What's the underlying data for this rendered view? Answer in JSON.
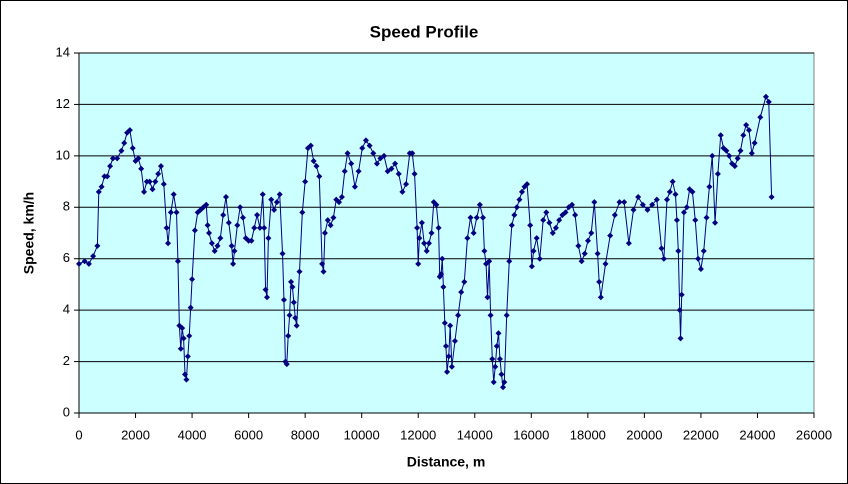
{
  "chart_data": {
    "type": "line",
    "title": "Speed Profile",
    "x_label": "Distance, m",
    "y_label": "Speed, km/h",
    "x": [
      0,
      200,
      350,
      500,
      650,
      700,
      800,
      900,
      1000,
      1100,
      1200,
      1350,
      1500,
      1600,
      1700,
      1800,
      1900,
      2000,
      2100,
      2200,
      2300,
      2400,
      2500,
      2600,
      2700,
      2800,
      2900,
      3000,
      3100,
      3150,
      3250,
      3350,
      3450,
      3500,
      3550,
      3600,
      3650,
      3700,
      3750,
      3800,
      3850,
      3900,
      3950,
      4000,
      4100,
      4200,
      4300,
      4400,
      4500,
      4550,
      4600,
      4700,
      4800,
      4900,
      5000,
      5100,
      5200,
      5300,
      5400,
      5450,
      5500,
      5600,
      5700,
      5800,
      5900,
      6000,
      6100,
      6200,
      6300,
      6400,
      6500,
      6550,
      6600,
      6650,
      6700,
      6800,
      6900,
      7000,
      7100,
      7200,
      7250,
      7300,
      7350,
      7400,
      7450,
      7500,
      7550,
      7600,
      7650,
      7700,
      7800,
      7900,
      8000,
      8100,
      8200,
      8300,
      8400,
      8500,
      8600,
      8650,
      8700,
      8800,
      8900,
      9000,
      9100,
      9200,
      9300,
      9400,
      9500,
      9630,
      9760,
      9890,
      10020,
      10150,
      10280,
      10410,
      10540,
      10660,
      10790,
      10920,
      11050,
      11180,
      11310,
      11440,
      11570,
      11700,
      11790,
      11870,
      11960,
      12000,
      12040,
      12130,
      12210,
      12300,
      12380,
      12470,
      12550,
      12640,
      12720,
      12760,
      12810,
      12850,
      12890,
      12940,
      12980,
      13020,
      13080,
      13130,
      13190,
      13300,
      13410,
      13520,
      13630,
      13740,
      13850,
      13960,
      14070,
      14180,
      14290,
      14340,
      14400,
      14450,
      14510,
      14560,
      14620,
      14670,
      14725,
      14780,
      14840,
      14890,
      14945,
      15000,
      15045,
      15130,
      15220,
      15310,
      15400,
      15490,
      15580,
      15670,
      15760,
      15850,
      15960,
      16020,
      16080,
      16190,
      16300,
      16420,
      16530,
      16640,
      16760,
      16870,
      16985,
      17100,
      17210,
      17325,
      17440,
      17550,
      17665,
      17780,
      17890,
      18005,
      18120,
      18230,
      18345,
      18400,
      18460,
      18625,
      18790,
      18955,
      19120,
      19285,
      19450,
      19615,
      19780,
      19945,
      20110,
      20275,
      20440,
      20605,
      20690,
      20800,
      20900,
      21000,
      21100,
      21150,
      21200,
      21250,
      21280,
      21320,
      21400,
      21500,
      21600,
      21700,
      21800,
      21900,
      22000,
      22100,
      22200,
      22300,
      22400,
      22500,
      22600,
      22700,
      22800,
      22900,
      23000,
      23100,
      23200,
      23300,
      23400,
      23500,
      23600,
      23700,
      23800,
      23900,
      24100,
      24300,
      24400,
      24500
    ],
    "values": [
      5.8,
      5.9,
      5.8,
      6.1,
      6.5,
      8.6,
      8.8,
      9.2,
      9.2,
      9.6,
      9.9,
      9.9,
      10.2,
      10.5,
      10.9,
      11.0,
      10.3,
      9.8,
      9.9,
      9.5,
      8.6,
      9.0,
      9.0,
      8.7,
      9.0,
      9.3,
      9.6,
      8.9,
      7.2,
      6.6,
      7.8,
      8.5,
      7.8,
      5.9,
      3.4,
      2.5,
      3.3,
      2.9,
      1.5,
      1.3,
      2.2,
      3.0,
      4.1,
      5.2,
      7.1,
      7.8,
      7.9,
      8.0,
      8.1,
      7.3,
      7.0,
      6.6,
      6.3,
      6.5,
      6.8,
      7.7,
      8.4,
      7.4,
      6.5,
      5.8,
      6.3,
      7.3,
      8.0,
      7.6,
      6.8,
      6.7,
      6.7,
      7.2,
      7.7,
      7.2,
      8.5,
      7.2,
      4.8,
      4.5,
      6.8,
      8.3,
      7.9,
      8.2,
      8.5,
      6.2,
      4.4,
      2.0,
      1.9,
      3.0,
      3.8,
      5.1,
      4.9,
      4.3,
      3.7,
      3.4,
      5.5,
      7.8,
      9.0,
      10.3,
      10.4,
      9.8,
      9.6,
      9.2,
      5.8,
      5.5,
      7.0,
      7.5,
      7.3,
      7.6,
      8.3,
      8.2,
      8.4,
      9.4,
      10.1,
      9.7,
      8.8,
      9.4,
      10.3,
      10.6,
      10.4,
      10.1,
      9.7,
      9.9,
      10.0,
      9.4,
      9.5,
      9.7,
      9.3,
      8.6,
      8.9,
      10.1,
      10.1,
      9.3,
      7.2,
      5.8,
      6.8,
      7.4,
      6.6,
      6.3,
      6.6,
      7.0,
      8.2,
      8.1,
      7.2,
      5.3,
      5.4,
      6.0,
      4.9,
      3.5,
      2.6,
      1.6,
      2.2,
      3.4,
      1.8,
      2.8,
      3.8,
      4.7,
      5.1,
      6.8,
      7.6,
      7.0,
      7.6,
      8.1,
      7.6,
      6.3,
      5.8,
      4.5,
      5.9,
      3.8,
      2.1,
      1.2,
      1.8,
      2.6,
      3.1,
      2.1,
      1.5,
      1.0,
      1.2,
      3.8,
      5.9,
      7.3,
      7.7,
      8.0,
      8.3,
      8.6,
      8.8,
      8.9,
      7.3,
      5.7,
      6.3,
      6.8,
      6.0,
      7.5,
      7.8,
      7.4,
      7.0,
      7.2,
      7.5,
      7.7,
      7.8,
      8.0,
      8.1,
      7.7,
      6.5,
      5.9,
      6.2,
      6.7,
      7.0,
      8.2,
      6.2,
      5.1,
      4.5,
      5.8,
      6.9,
      7.7,
      8.2,
      8.2,
      6.6,
      7.9,
      8.4,
      8.1,
      7.9,
      8.1,
      8.3,
      6.4,
      6.0,
      8.3,
      8.6,
      9.0,
      8.5,
      7.5,
      6.3,
      4.0,
      2.9,
      4.6,
      7.8,
      8.0,
      8.7,
      8.6,
      7.5,
      6.0,
      5.6,
      6.3,
      7.6,
      8.8,
      10.0,
      7.4,
      9.3,
      10.8,
      10.3,
      10.2,
      10.0,
      9.7,
      9.6,
      9.9,
      10.2,
      10.8,
      11.2,
      11.0,
      10.1,
      10.5,
      11.5,
      12.3,
      12.1,
      8.4
    ],
    "color": "#000080",
    "plot_background": "#ccffff",
    "xlim": [
      0,
      26000
    ],
    "xticks": [
      0,
      2000,
      4000,
      6000,
      8000,
      10000,
      12000,
      14000,
      16000,
      18000,
      20000,
      22000,
      24000,
      26000
    ],
    "ylim": [
      0,
      14
    ],
    "yticks": [
      0,
      2,
      4,
      6,
      8,
      10,
      12,
      14
    ],
    "grid": true
  }
}
